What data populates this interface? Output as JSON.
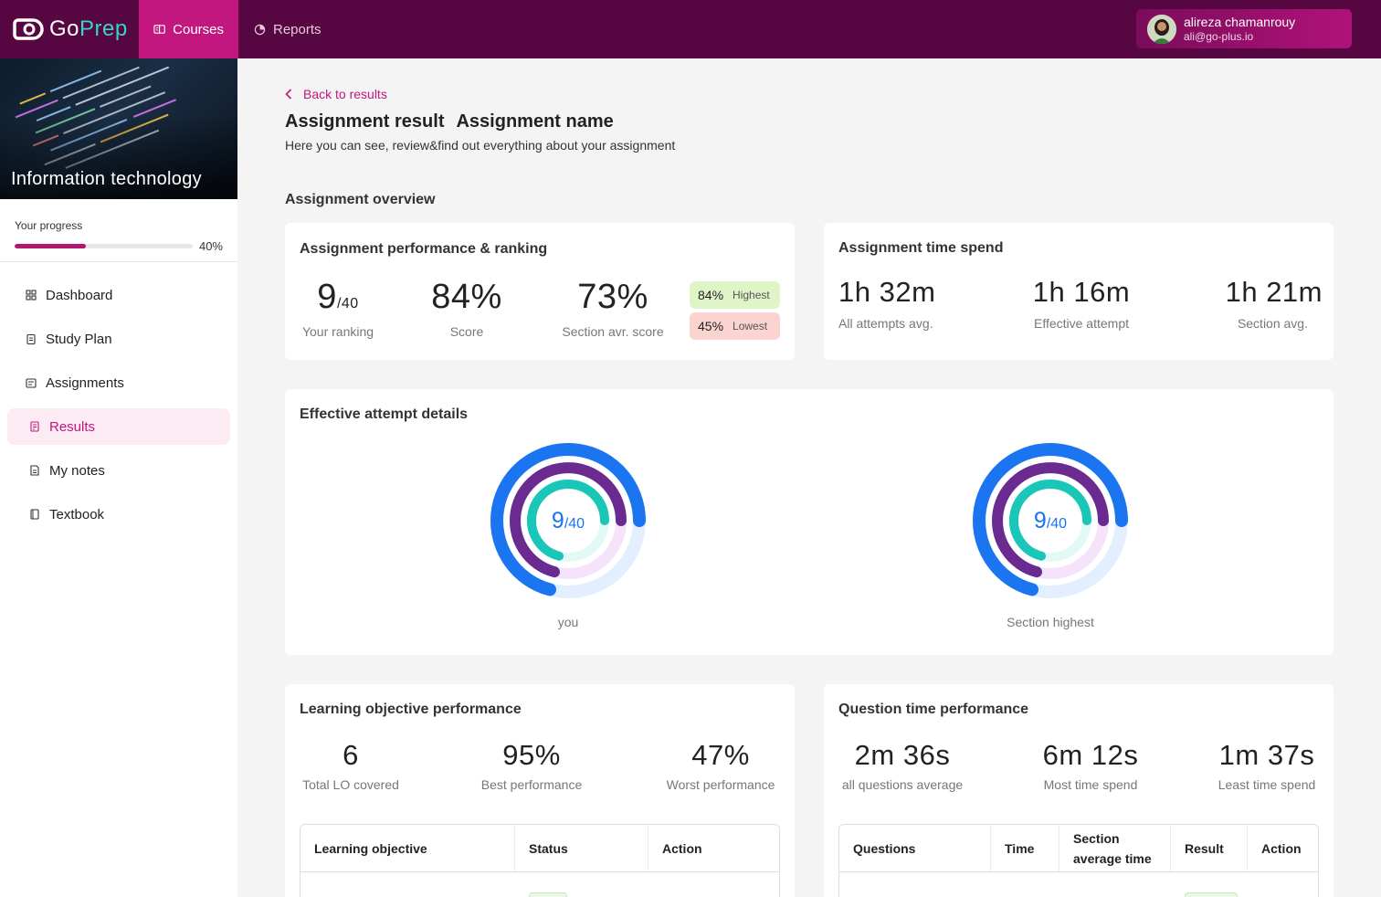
{
  "brand": {
    "go": "Go",
    "prep": "Prep"
  },
  "nav": {
    "courses": "Courses",
    "reports": "Reports"
  },
  "user": {
    "name": "alireza chamanrouy",
    "email": "ali@go-plus.io"
  },
  "course": {
    "title": "Information technology"
  },
  "progress": {
    "label": "Your progress",
    "value": 40,
    "text": "40%"
  },
  "menu": {
    "dashboard": "Dashboard",
    "study_plan": "Study Plan",
    "assignments": "Assignments",
    "results": "Results",
    "my_notes": "My notes",
    "textbook": "Textbook"
  },
  "page": {
    "back": "Back to results",
    "title": "Assignment result",
    "name": "Assignment name",
    "subtitle": "Here you can see, review&find out everything about your assignment",
    "overview": "Assignment overview"
  },
  "performance": {
    "title": "Assignment performance & ranking",
    "ranking_value": "9",
    "ranking_total": "/40",
    "ranking_label": "Your ranking",
    "score_value": "84%",
    "score_label": "Score",
    "section_value": "73%",
    "section_label": "Section avr. score",
    "highest_value": "84%",
    "highest_label": "Highest",
    "lowest_value": "45%",
    "lowest_label": "Lowest"
  },
  "time_spend": {
    "title": "Assignment time spend",
    "all_value": "1h 32m",
    "all_label": "All attempts avg.",
    "effective_value": "1h 16m",
    "effective_label": "Effective attempt",
    "section_value": "1h 21m",
    "section_label": "Section avg."
  },
  "effective": {
    "title": "Effective attempt details",
    "you": {
      "value": "9",
      "total": "/40",
      "label": "you"
    },
    "highest": {
      "value": "9",
      "total": "/40",
      "label": "Section highest"
    }
  },
  "learning": {
    "title": "Learning objective performance",
    "total_value": "6",
    "total_label": "Total LO covered",
    "best_value": "95%",
    "best_label": "Best performance",
    "worst_value": "47%",
    "worst_label": "Worst performance",
    "columns": [
      "Learning objective",
      "Status",
      "Action"
    ]
  },
  "question_time": {
    "title": "Question time performance",
    "avg_value": "2m 36s",
    "avg_label": "all questions average",
    "most_value": "6m 12s",
    "most_label": "Most time spend",
    "least_value": "1m 37s",
    "least_label": "Least time spend",
    "columns": [
      "Questions",
      "Time",
      "Section average time",
      "Result",
      "Action"
    ]
  },
  "colors": {
    "brand_dark": "#560641",
    "brand_pink": "#c2177f",
    "ring_blue": "#1b74f0",
    "ring_purple": "#6b2a8f",
    "ring_teal": "#19c6b8"
  }
}
